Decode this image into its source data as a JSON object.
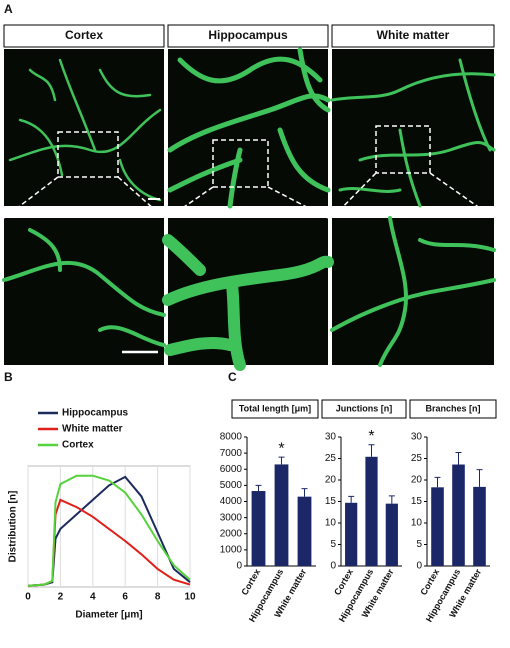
{
  "panel_labels": [
    "A",
    "B",
    "C"
  ],
  "image_headers": [
    "Cortex",
    "Hippocampus",
    "White matter"
  ],
  "chart_data": [
    {
      "type": "line",
      "xlabel": "Diameter [μm]",
      "ylabel": "Distribution [n]",
      "x": [
        0,
        1,
        1.5,
        1.7,
        2,
        3,
        4,
        5,
        6,
        7,
        8,
        9,
        10
      ],
      "xlim": [
        0,
        10
      ],
      "xticks": [
        0,
        2,
        4,
        6,
        8,
        10
      ],
      "ylim": [
        0,
        100
      ],
      "grid": true,
      "legend": "upper left",
      "series": [
        {
          "name": "Hippocampus",
          "color": "#1c2a5e",
          "values": [
            1,
            2,
            4,
            40,
            48,
            60,
            72,
            84,
            91,
            75,
            45,
            15,
            4
          ]
        },
        {
          "name": "White matter",
          "color": "#e0211b",
          "values": [
            1,
            2,
            5,
            60,
            72,
            66,
            58,
            48,
            38,
            27,
            15,
            6,
            2
          ]
        },
        {
          "name": "Cortex",
          "color": "#55d23c",
          "values": [
            1,
            2,
            5,
            70,
            85,
            92,
            92,
            88,
            78,
            60,
            38,
            18,
            6
          ]
        }
      ]
    },
    {
      "type": "bar",
      "title": "Total length [μm]",
      "categories": [
        "Cortex",
        "Hippocampus",
        "White matter"
      ],
      "values": [
        4650,
        6300,
        4300
      ],
      "errors": [
        350,
        450,
        500
      ],
      "color": "#1c2768",
      "ylim": [
        0,
        8000
      ],
      "yticks": [
        0,
        1000,
        2000,
        3000,
        4000,
        5000,
        6000,
        7000,
        8000
      ],
      "annotations": [
        {
          "text": "*",
          "at": 1
        }
      ]
    },
    {
      "type": "bar",
      "title": "Junctions [n]",
      "categories": [
        "Cortex",
        "Hippocampus",
        "White matter"
      ],
      "values": [
        14.7,
        25.4,
        14.5
      ],
      "errors": [
        1.5,
        2.8,
        1.8
      ],
      "color": "#1c2768",
      "ylim": [
        0,
        30
      ],
      "yticks": [
        0,
        5,
        10,
        15,
        20,
        25,
        30
      ],
      "annotations": [
        {
          "text": "*",
          "at": 1
        }
      ]
    },
    {
      "type": "bar",
      "title": "Branches [n]",
      "categories": [
        "Cortex",
        "Hippocampus",
        "White matter"
      ],
      "values": [
        18.3,
        23.6,
        18.4
      ],
      "errors": [
        2.3,
        2.8,
        4.0
      ],
      "color": "#1c2768",
      "ylim": [
        0,
        30
      ],
      "yticks": [
        0,
        5,
        10,
        15,
        20,
        25,
        30
      ]
    }
  ]
}
